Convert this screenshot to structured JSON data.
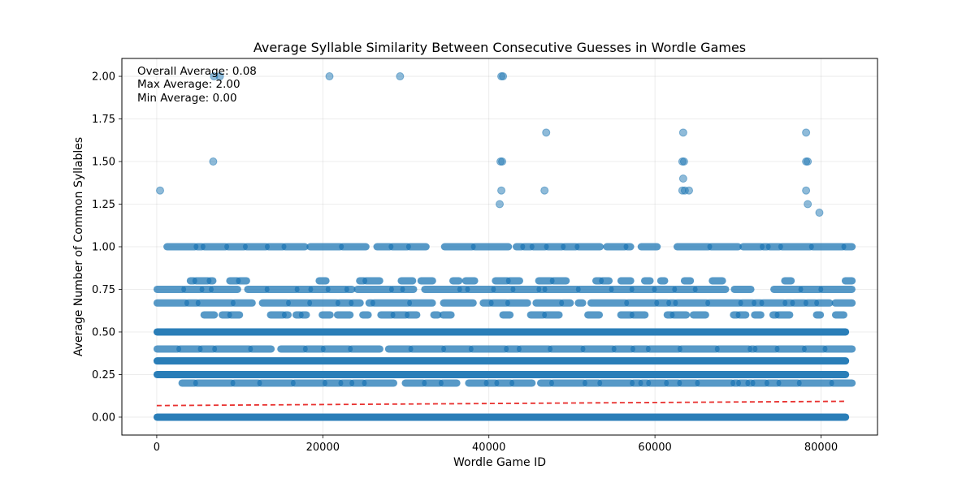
{
  "chart_data": {
    "type": "scatter",
    "title": "Average Syllable Similarity Between Consecutive Guesses in Wordle Games",
    "xlabel": "Wordle Game ID",
    "ylabel": "Average Number of Common Syllables",
    "xlim": [
      -4200,
      86800
    ],
    "ylim": [
      -0.105,
      2.105
    ],
    "xticks": [
      0,
      20000,
      40000,
      60000,
      80000
    ],
    "xtick_labels": [
      "0",
      "20000",
      "40000",
      "60000",
      "80000"
    ],
    "yticks": [
      0.0,
      0.25,
      0.5,
      0.75,
      1.0,
      1.25,
      1.5,
      1.75,
      2.0
    ],
    "ytick_labels": [
      "0.00",
      "0.25",
      "0.50",
      "0.75",
      "1.00",
      "1.25",
      "1.50",
      "1.75",
      "2.00"
    ],
    "grid": true,
    "colors": {
      "points": "#1f77b4",
      "trend": "#e8312f"
    },
    "point_alpha": 0.5,
    "annotations": [
      "Overall Average: 0.08",
      "Max Average: 2.00",
      "Min Average: 0.00"
    ],
    "series": [
      {
        "type": "scatter",
        "points": [
          {
            "x": 400,
            "y": 1.33
          },
          {
            "x": 6800,
            "y": 1.5
          },
          {
            "x": 6900,
            "y": 2.0
          },
          {
            "x": 7600,
            "y": 2.0
          },
          {
            "x": 20800,
            "y": 2.0
          },
          {
            "x": 29300,
            "y": 2.0
          },
          {
            "x": 41500,
            "y": 2.0
          },
          {
            "x": 41700,
            "y": 2.0
          },
          {
            "x": 41400,
            "y": 1.5
          },
          {
            "x": 41600,
            "y": 1.5
          },
          {
            "x": 41500,
            "y": 1.33
          },
          {
            "x": 41300,
            "y": 1.25
          },
          {
            "x": 46900,
            "y": 1.67
          },
          {
            "x": 46700,
            "y": 1.33
          },
          {
            "x": 63400,
            "y": 1.67
          },
          {
            "x": 63300,
            "y": 1.5
          },
          {
            "x": 63500,
            "y": 1.5
          },
          {
            "x": 63400,
            "y": 1.4
          },
          {
            "x": 63300,
            "y": 1.33
          },
          {
            "x": 63600,
            "y": 1.33
          },
          {
            "x": 64100,
            "y": 1.33
          },
          {
            "x": 78200,
            "y": 1.67
          },
          {
            "x": 78200,
            "y": 1.5
          },
          {
            "x": 78400,
            "y": 1.5
          },
          {
            "x": 78200,
            "y": 1.33
          },
          {
            "x": 78400,
            "y": 1.25
          },
          {
            "x": 79800,
            "y": 1.2
          }
        ],
        "bands": [
          {
            "y": 0.0,
            "x_from": 0,
            "x_to": 83000,
            "density": "solid"
          },
          {
            "y": 0.2,
            "x_from": 3000,
            "x_to": 83000,
            "density": "dense"
          },
          {
            "y": 0.25,
            "x_from": 0,
            "x_to": 83000,
            "density": "solid"
          },
          {
            "y": 0.33,
            "x_from": 0,
            "x_to": 83000,
            "density": "solid"
          },
          {
            "y": 0.4,
            "x_from": 0,
            "x_to": 83000,
            "density": "dense"
          },
          {
            "y": 0.5,
            "x_from": 0,
            "x_to": 83000,
            "density": "solid"
          },
          {
            "y": 0.6,
            "x_from": 4000,
            "x_to": 82000,
            "density": "sparse"
          },
          {
            "y": 0.67,
            "x_from": 0,
            "x_to": 83000,
            "density": "dense"
          },
          {
            "y": 0.75,
            "x_from": 0,
            "x_to": 83000,
            "density": "dense"
          },
          {
            "y": 0.8,
            "x_from": 4000,
            "x_to": 83000,
            "density": "sparse"
          },
          {
            "y": 1.0,
            "x_from": 0,
            "x_to": 83000,
            "density": "dense"
          }
        ]
      },
      {
        "type": "line",
        "style": "dashed",
        "x": [
          0,
          83000
        ],
        "y": [
          0.068,
          0.093
        ]
      }
    ]
  }
}
